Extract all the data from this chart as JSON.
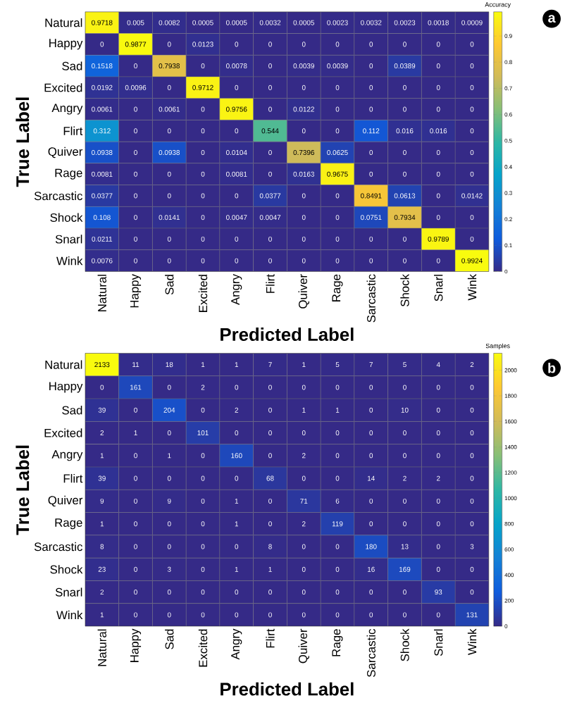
{
  "chart_data": [
    {
      "type": "heatmap",
      "xlabel": "Predicted Label",
      "ylabel": "True Label",
      "clabel": "Accuracy",
      "annotations": [
        "a"
      ],
      "data_labels": true,
      "categories": [
        "Natural",
        "Happy",
        "Sad",
        "Excited",
        "Angry",
        "Flirt",
        "Quiver",
        "Rage",
        "Sarcastic",
        "Shock",
        "Snarl",
        "Wink"
      ],
      "y_categories": [
        "Natural",
        "Happy",
        "Sad",
        "Excited",
        "Angry",
        "Flirt",
        "Quiver",
        "Rage",
        "Sarcastic",
        "Shock",
        "Snarl",
        "Wink"
      ],
      "cells": [
        [
          0.9718,
          0.005,
          0.0082,
          0.0005,
          0.0005,
          0.0032,
          0.0005,
          0.0023,
          0.0032,
          0.0023,
          0.0018,
          0.0009
        ],
        [
          0,
          0.9877,
          0,
          0.0123,
          0,
          0,
          0,
          0,
          0,
          0,
          0,
          0
        ],
        [
          0.1518,
          0,
          0.7938,
          0,
          0.0078,
          0,
          0.0039,
          0.0039,
          0,
          0.0389,
          0,
          0
        ],
        [
          0.0192,
          0.0096,
          0,
          0.9712,
          0,
          0,
          0,
          0,
          0,
          0,
          0,
          0
        ],
        [
          0.0061,
          0,
          0.0061,
          0,
          0.9756,
          0,
          0.0122,
          0,
          0,
          0,
          0,
          0
        ],
        [
          0.312,
          0,
          0,
          0,
          0,
          0.544,
          0,
          0,
          0.112,
          0.016,
          0.016,
          0
        ],
        [
          0.0938,
          0,
          0.0938,
          0,
          0.0104,
          0,
          0.7396,
          0.0625,
          0,
          0,
          0,
          0
        ],
        [
          0.0081,
          0,
          0,
          0,
          0.0081,
          0,
          0.0163,
          0.9675,
          0,
          0,
          0,
          0
        ],
        [
          0.0377,
          0,
          0,
          0,
          0,
          0.0377,
          0,
          0,
          0.8491,
          0.0613,
          0,
          0.0142
        ],
        [
          0.108,
          0,
          0.0141,
          0,
          0.0047,
          0.0047,
          0,
          0,
          0.0751,
          0.7934,
          0,
          0
        ],
        [
          0.0211,
          0,
          0,
          0,
          0,
          0,
          0,
          0,
          0,
          0,
          0.9789,
          0
        ],
        [
          0.0076,
          0,
          0,
          0,
          0,
          0,
          0,
          0,
          0,
          0,
          0,
          0.9924
        ]
      ],
      "clim": [
        0,
        0.9924
      ],
      "cticks": [
        0,
        0.1,
        0.2,
        0.3,
        0.4,
        0.5,
        0.6,
        0.7,
        0.8,
        0.9
      ]
    },
    {
      "type": "heatmap",
      "xlabel": "Predicted Label",
      "ylabel": "True Label",
      "clabel": "Samples",
      "annotations": [
        "b"
      ],
      "data_labels": true,
      "categories": [
        "Natural",
        "Happy",
        "Sad",
        "Excited",
        "Angry",
        "Flirt",
        "Quiver",
        "Rage",
        "Sarcastic",
        "Shock",
        "Snarl",
        "Wink"
      ],
      "y_categories": [
        "Natural",
        "Happy",
        "Sad",
        "Excited",
        "Angry",
        "Flirt",
        "Quiver",
        "Rage",
        "Sarcastic",
        "Shock",
        "Snarl",
        "Wink"
      ],
      "cells": [
        [
          2133,
          11,
          18,
          1,
          1,
          7,
          1,
          5,
          7,
          5,
          4,
          2
        ],
        [
          0,
          161,
          0,
          2,
          0,
          0,
          0,
          0,
          0,
          0,
          0,
          0
        ],
        [
          39,
          0,
          204,
          0,
          2,
          0,
          1,
          1,
          0,
          10,
          0,
          0
        ],
        [
          2,
          1,
          0,
          101,
          0,
          0,
          0,
          0,
          0,
          0,
          0,
          0
        ],
        [
          1,
          0,
          1,
          0,
          160,
          0,
          2,
          0,
          0,
          0,
          0,
          0
        ],
        [
          39,
          0,
          0,
          0,
          0,
          68,
          0,
          0,
          14,
          2,
          2,
          0
        ],
        [
          9,
          0,
          9,
          0,
          1,
          0,
          71,
          6,
          0,
          0,
          0,
          0
        ],
        [
          1,
          0,
          0,
          0,
          1,
          0,
          2,
          119,
          0,
          0,
          0,
          0
        ],
        [
          8,
          0,
          0,
          0,
          0,
          8,
          0,
          0,
          180,
          13,
          0,
          3
        ],
        [
          23,
          0,
          3,
          0,
          1,
          1,
          0,
          0,
          16,
          169,
          0,
          0
        ],
        [
          2,
          0,
          0,
          0,
          0,
          0,
          0,
          0,
          0,
          0,
          93,
          0
        ],
        [
          1,
          0,
          0,
          0,
          0,
          0,
          0,
          0,
          0,
          0,
          0,
          131
        ]
      ],
      "clim": [
        0,
        2133
      ],
      "cticks": [
        0,
        200,
        400,
        600,
        800,
        1000,
        1200,
        1400,
        1600,
        1800,
        2000
      ]
    }
  ]
}
